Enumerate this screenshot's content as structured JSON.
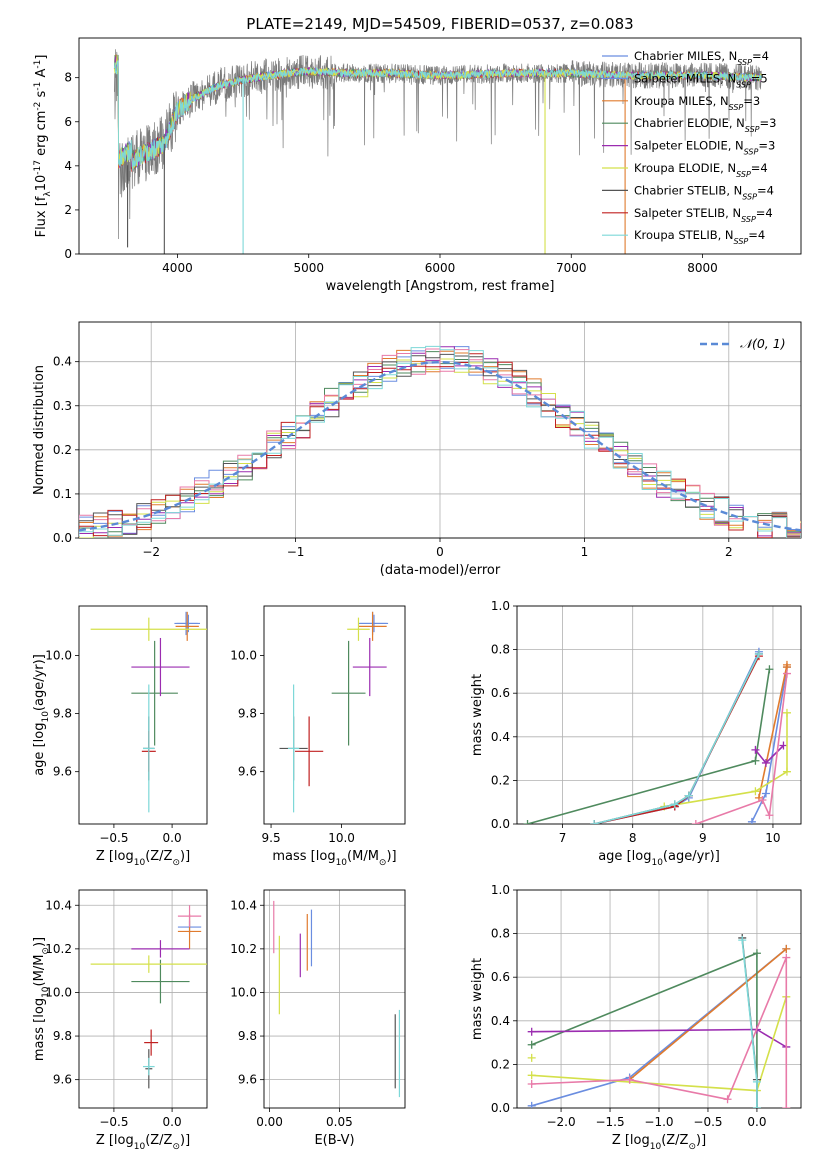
{
  "figure": {
    "title": "PLATE=2149, MJD=54509, FIBERID=0537, z=0.083"
  },
  "colors": {
    "Chabrier MILES": "#6a8de0",
    "Salpeter MILES": "#6a8de0",
    "Kroupa MILES": "#e07b2e",
    "Chabrier ELODIE": "#4f8a5e",
    "Salpeter ELODIE": "#9b2cb0",
    "Kroupa ELODIE": "#d4e04a",
    "Chabrier STELIB": "#555555",
    "Salpeter STELIB": "#c02020",
    "Kroupa STELIB": "#7dd8d8",
    "normal_curve": "#5a8ad6",
    "pink": "#e87aa8"
  },
  "chart_data": [
    {
      "id": "spectrum",
      "type": "line",
      "xlabel": "wavelength [Angstrom, rest frame]",
      "ylabel": "Flux [f$_\\lambda$10$^{-17}$ erg cm$^{-2}$ s$^{-1}$ A$^{-1}$]",
      "xlim": [
        3250,
        8750
      ],
      "ylim": [
        0,
        9.8
      ],
      "xticks": [
        4000,
        5000,
        6000,
        7000,
        8000
      ],
      "yticks": [
        0,
        2,
        4,
        6,
        8
      ],
      "legend_position": "right",
      "legend": [
        {
          "name": "Chabrier MILES",
          "nssp": "4",
          "color_key": "Chabrier MILES"
        },
        {
          "name": "Salpeter MILES",
          "nssp": "5",
          "color_key": "Salpeter MILES"
        },
        {
          "name": "Kroupa MILES",
          "nssp": "3",
          "color_key": "Kroupa MILES"
        },
        {
          "name": "Chabrier ELODIE",
          "nssp": "3",
          "color_key": "Chabrier ELODIE"
        },
        {
          "name": "Salpeter ELODIE",
          "nssp": "3",
          "color_key": "Salpeter ELODIE"
        },
        {
          "name": "Kroupa ELODIE",
          "nssp": "4",
          "color_key": "Kroupa ELODIE"
        },
        {
          "name": "Chabrier STELIB",
          "nssp": "4",
          "color_key": "Chabrier STELIB"
        },
        {
          "name": "Salpeter STELIB",
          "nssp": "4",
          "color_key": "Salpeter STELIB"
        },
        {
          "name": "Kroupa STELIB",
          "nssp": "4",
          "color_key": "Kroupa STELIB"
        }
      ],
      "continuum_shape": [
        [
          3550,
          3.7
        ],
        [
          3700,
          4.4
        ],
        [
          3900,
          5.0
        ],
        [
          4000,
          6.5
        ],
        [
          4100,
          7.0
        ],
        [
          4300,
          7.6
        ],
        [
          4500,
          7.9
        ],
        [
          4700,
          8.1
        ],
        [
          5000,
          8.3
        ],
        [
          5300,
          8.2
        ],
        [
          5600,
          8.2
        ],
        [
          6000,
          8.1
        ],
        [
          6500,
          8.2
        ],
        [
          7000,
          8.2
        ],
        [
          7400,
          8.1
        ],
        [
          8000,
          8.1
        ],
        [
          8450,
          8.0
        ]
      ],
      "data_x_range": [
        3520,
        8450
      ],
      "drops": [
        {
          "x": 3620,
          "y": 0.3
        },
        {
          "x": 3900,
          "y": 0.0
        },
        {
          "x": 4500,
          "y": 0.0
        },
        {
          "x": 6800,
          "y": 0.0
        },
        {
          "x": 7410,
          "y": 0.0
        }
      ]
    },
    {
      "id": "residuals",
      "type": "line",
      "xlabel": "(data-model)/error",
      "ylabel": "Normed distribution",
      "xlim": [
        -2.5,
        2.5
      ],
      "ylim": [
        0,
        0.49
      ],
      "xticks": [
        -2,
        -1,
        0,
        1,
        2
      ],
      "yticks": [
        0.0,
        0.1,
        0.2,
        0.3,
        0.4
      ],
      "grid": true,
      "legend_position": "top-right",
      "curve_label": "𝒩(0, 1)",
      "bin_width": 0.1,
      "histogram_spread": 0.03
    },
    {
      "id": "age_vs_Z",
      "type": "scatter",
      "xlabel": "Z [log$_{10}$(Z/Z$_\\odot$)]",
      "ylabel": "age  [log$_{10}$(age/yr)]",
      "xlim": [
        -0.8,
        0.3
      ],
      "ylim": [
        9.42,
        10.17
      ],
      "xticks": [
        -0.5,
        0.0
      ],
      "yticks": [
        9.6,
        9.8,
        10.0
      ],
      "grid": false,
      "points": [
        {
          "color_key": "Chabrier MILES",
          "x": 0.12,
          "y": 10.11,
          "xerr": 0.1,
          "yerr": 0.04
        },
        {
          "color_key": "Salpeter MILES",
          "x": 0.14,
          "y": 10.11,
          "xerr": 0.1,
          "yerr": 0.03
        },
        {
          "color_key": "Kroupa MILES",
          "x": 0.13,
          "y": 10.1,
          "xerr": 0.1,
          "yerr": 0.05
        },
        {
          "color_key": "Chabrier ELODIE",
          "x": -0.15,
          "y": 9.87,
          "xerr": 0.2,
          "yerr": 0.18
        },
        {
          "color_key": "Salpeter ELODIE",
          "x": -0.1,
          "y": 9.96,
          "xerr": 0.25,
          "yerr": 0.1
        },
        {
          "color_key": "Kroupa ELODIE",
          "x": -0.2,
          "y": 10.09,
          "xerr": 0.5,
          "yerr": 0.04
        },
        {
          "color_key": "Chabrier STELIB",
          "x": -0.2,
          "y": 9.68,
          "xerr": 0.05,
          "yerr": 0.11
        },
        {
          "color_key": "Salpeter STELIB",
          "x": -0.2,
          "y": 9.67,
          "xerr": 0.06,
          "yerr": 0.07
        },
        {
          "color_key": "Kroupa STELIB",
          "x": -0.2,
          "y": 9.68,
          "xerr": 0.05,
          "yerr": 0.22
        }
      ]
    },
    {
      "id": "age_vs_mass",
      "type": "scatter",
      "xlabel": "mass [log$_{10}$(M/M$_\\odot$)]",
      "ylabel": "",
      "xlim": [
        9.45,
        10.45
      ],
      "ylim": [
        9.42,
        10.17
      ],
      "xticks": [
        9.5,
        10.0
      ],
      "yticks": [
        9.6,
        9.8,
        10.0
      ],
      "grid": false,
      "points": [
        {
          "color_key": "Chabrier MILES",
          "x": 10.22,
          "y": 10.11,
          "xerr": 0.1,
          "yerr": 0.04
        },
        {
          "color_key": "Salpeter MILES",
          "x": 10.23,
          "y": 10.11,
          "xerr": 0.1,
          "yerr": 0.03
        },
        {
          "color_key": "Kroupa MILES",
          "x": 10.22,
          "y": 10.1,
          "xerr": 0.1,
          "yerr": 0.05
        },
        {
          "color_key": "Chabrier ELODIE",
          "x": 10.05,
          "y": 9.87,
          "xerr": 0.12,
          "yerr": 0.18
        },
        {
          "color_key": "Salpeter ELODIE",
          "x": 10.2,
          "y": 9.96,
          "xerr": 0.12,
          "yerr": 0.1
        },
        {
          "color_key": "Kroupa ELODIE",
          "x": 10.12,
          "y": 10.09,
          "xerr": 0.08,
          "yerr": 0.04
        },
        {
          "color_key": "Chabrier STELIB",
          "x": 9.66,
          "y": 9.68,
          "xerr": 0.1,
          "yerr": 0.11
        },
        {
          "color_key": "Salpeter STELIB",
          "x": 9.77,
          "y": 9.67,
          "xerr": 0.1,
          "yerr": 0.12
        },
        {
          "color_key": "Kroupa STELIB",
          "x": 9.66,
          "y": 9.68,
          "xerr": 0.04,
          "yerr": 0.22
        }
      ]
    },
    {
      "id": "weight_vs_age",
      "type": "line",
      "xlabel": "age  [log$_{10}$(age/yr)]",
      "ylabel": "mass weight",
      "xlim": [
        6.35,
        10.4
      ],
      "ylim": [
        0,
        1.0
      ],
      "xticks": [
        7,
        8,
        9,
        10
      ],
      "yticks": [
        0.0,
        0.2,
        0.4,
        0.6,
        0.8,
        1.0
      ],
      "grid": true,
      "series": [
        {
          "color_key": "Chabrier MILES",
          "points": [
            [
              9.7,
              0.01
            ],
            [
              9.9,
              0.14
            ],
            [
              10.2,
              0.72
            ]
          ]
        },
        {
          "color_key": "Salpeter MILES",
          "points": [
            [
              7.45,
              0.0
            ],
            [
              8.6,
              0.08
            ],
            [
              8.8,
              0.12
            ],
            [
              9.8,
              0.79
            ]
          ]
        },
        {
          "color_key": "Kroupa MILES",
          "points": [
            [
              9.8,
              0.12
            ],
            [
              10.2,
              0.73
            ],
            [
              10.2,
              0.72
            ]
          ]
        },
        {
          "color_key": "Chabrier ELODIE",
          "points": [
            [
              6.5,
              0.0
            ],
            [
              9.75,
              0.29
            ],
            [
              9.95,
              0.71
            ]
          ]
        },
        {
          "color_key": "Salpeter ELODIE",
          "points": [
            [
              9.75,
              0.34
            ],
            [
              9.9,
              0.28
            ],
            [
              10.15,
              0.36
            ]
          ]
        },
        {
          "color_key": "Kroupa ELODIE",
          "points": [
            [
              8.45,
              0.08
            ],
            [
              9.75,
              0.15
            ],
            [
              10.2,
              0.24
            ],
            [
              10.2,
              0.51
            ]
          ]
        },
        {
          "color_key": "Chabrier STELIB",
          "points": [
            [
              7.45,
              0.0
            ],
            [
              8.6,
              0.09
            ],
            [
              8.8,
              0.13
            ],
            [
              9.8,
              0.78
            ]
          ]
        },
        {
          "color_key": "Salpeter STELIB",
          "points": [
            [
              7.45,
              0.0
            ],
            [
              8.6,
              0.08
            ],
            [
              8.8,
              0.13
            ],
            [
              9.8,
              0.77
            ]
          ]
        },
        {
          "color_key": "pink",
          "points": [
            [
              8.9,
              0.0
            ],
            [
              9.85,
              0.11
            ],
            [
              9.95,
              0.04
            ],
            [
              10.2,
              0.69
            ]
          ]
        },
        {
          "color_key": "Kroupa STELIB",
          "points": [
            [
              7.45,
              0.0
            ],
            [
              8.6,
              0.09
            ],
            [
              8.8,
              0.13
            ],
            [
              9.8,
              0.78
            ]
          ]
        }
      ]
    },
    {
      "id": "mass_vs_Z",
      "type": "scatter",
      "xlabel": "Z [log$_{10}$(Z/Z$_\\odot$)]",
      "ylabel": "mass [log$_{10}$(M/M$_\\odot$)]",
      "xlim": [
        -0.8,
        0.3
      ],
      "ylim": [
        9.47,
        10.47
      ],
      "xticks": [
        -0.5,
        0.0
      ],
      "yticks": [
        9.6,
        9.8,
        10.0,
        10.2,
        10.4
      ],
      "grid": true,
      "points": [
        {
          "color_key": "Chabrier MILES",
          "x": 0.15,
          "y": 10.3,
          "xerr": 0.1,
          "yerr": 0.03
        },
        {
          "color_key": "Kroupa MILES",
          "x": 0.15,
          "y": 10.28,
          "xerr": 0.1,
          "yerr": 0.08
        },
        {
          "color_key": "Chabrier ELODIE",
          "x": -0.1,
          "y": 10.05,
          "xerr": 0.25,
          "yerr": 0.1
        },
        {
          "color_key": "Salpeter ELODIE",
          "x": -0.1,
          "y": 10.2,
          "xerr": 0.25,
          "yerr": 0.04
        },
        {
          "color_key": "Kroupa ELODIE",
          "x": -0.2,
          "y": 10.13,
          "xerr": 0.5,
          "yerr": 0.04
        },
        {
          "color_key": "pink",
          "x": 0.15,
          "y": 10.35,
          "xerr": 0.1,
          "yerr": 0.05
        },
        {
          "color_key": "Chabrier STELIB",
          "x": -0.2,
          "y": 9.65,
          "xerr": 0.03,
          "yerr": 0.09
        },
        {
          "color_key": "Salpeter STELIB",
          "x": -0.18,
          "y": 9.77,
          "xerr": 0.06,
          "yerr": 0.06
        },
        {
          "color_key": "Kroupa STELIB",
          "x": -0.2,
          "y": 9.66,
          "xerr": 0.05,
          "yerr": 0.04
        }
      ]
    },
    {
      "id": "mass_vs_ebv",
      "type": "scatter",
      "xlabel": "E(B-V)",
      "ylabel": "",
      "xlim": [
        -0.004,
        0.097
      ],
      "ylim": [
        9.47,
        10.47
      ],
      "xticks": [
        0.0,
        0.05
      ],
      "yticks": [
        9.6,
        9.8,
        10.0,
        10.2,
        10.4
      ],
      "grid": true,
      "points": [
        {
          "color_key": "pink",
          "x": 0.003,
          "y": 10.3,
          "xerr": 0.0,
          "yerr": 0.12
        },
        {
          "color_key": "Kroupa ELODIE",
          "x": 0.007,
          "y": 10.08,
          "xerr": 0.0,
          "yerr": 0.18
        },
        {
          "color_key": "Salpeter ELODIE",
          "x": 0.022,
          "y": 10.17,
          "xerr": 0.0,
          "yerr": 0.1
        },
        {
          "color_key": "Kroupa MILES",
          "x": 0.027,
          "y": 10.23,
          "xerr": 0.0,
          "yerr": 0.13
        },
        {
          "color_key": "Chabrier MILES",
          "x": 0.03,
          "y": 10.25,
          "xerr": 0.0,
          "yerr": 0.13
        },
        {
          "color_key": "Chabrier STELIB",
          "x": 0.09,
          "y": 9.73,
          "xerr": 0.0,
          "yerr": 0.17
        },
        {
          "color_key": "Kroupa STELIB",
          "x": 0.093,
          "y": 9.72,
          "xerr": 0.0,
          "yerr": 0.2
        }
      ]
    },
    {
      "id": "weight_vs_Z",
      "type": "line",
      "xlabel": "Z [log$_{10}$(Z/Z$_\\odot$)]",
      "ylabel": "mass weight",
      "xlim": [
        -2.45,
        0.45
      ],
      "ylim": [
        0,
        1.0
      ],
      "xticks": [
        -2.0,
        -1.5,
        -1.0,
        -0.5,
        0.0
      ],
      "yticks": [
        0.0,
        0.2,
        0.4,
        0.6,
        0.8,
        1.0
      ],
      "grid": true,
      "series": [
        {
          "color_key": "Chabrier MILES",
          "points": [
            [
              -2.3,
              0.01
            ],
            [
              -1.3,
              0.14
            ],
            [
              0.3,
              0.73
            ]
          ]
        },
        {
          "color_key": "Kroupa MILES",
          "points": [
            [
              -1.3,
              0.13
            ],
            [
              0.3,
              0.73
            ]
          ]
        },
        {
          "color_key": "Chabrier ELODIE",
          "points": [
            [
              -2.3,
              0.29
            ],
            [
              0.0,
              0.71
            ],
            [
              0.0,
              0.0
            ]
          ]
        },
        {
          "color_key": "Salpeter ELODIE",
          "points": [
            [
              -2.3,
              0.35
            ],
            [
              0.0,
              0.36
            ],
            [
              0.3,
              0.28
            ]
          ]
        },
        {
          "color_key": "Kroupa ELODIE",
          "points": [
            [
              -2.3,
              0.15
            ],
            [
              0.0,
              0.08
            ],
            [
              0.3,
              0.51
            ]
          ]
        },
        {
          "color_key": "pink",
          "points": [
            [
              -2.3,
              0.11
            ],
            [
              -1.3,
              0.13
            ],
            [
              -0.3,
              0.04
            ],
            [
              0.3,
              0.69
            ],
            [
              0.3,
              0.0
            ]
          ]
        },
        {
          "color_key": "Chabrier STELIB",
          "points": [
            [
              -0.15,
              0.78
            ],
            [
              0.0,
              0.13
            ],
            [
              0.0,
              0.0
            ]
          ]
        },
        {
          "color_key": "Kroupa STELIB",
          "points": [
            [
              -0.15,
              0.77
            ],
            [
              0.0,
              0.12
            ],
            [
              0.0,
              0.0
            ]
          ]
        },
        {
          "color_key": "Kroupa ELODIE",
          "points": [
            [
              -2.3,
              0.23
            ]
          ]
        }
      ]
    }
  ]
}
